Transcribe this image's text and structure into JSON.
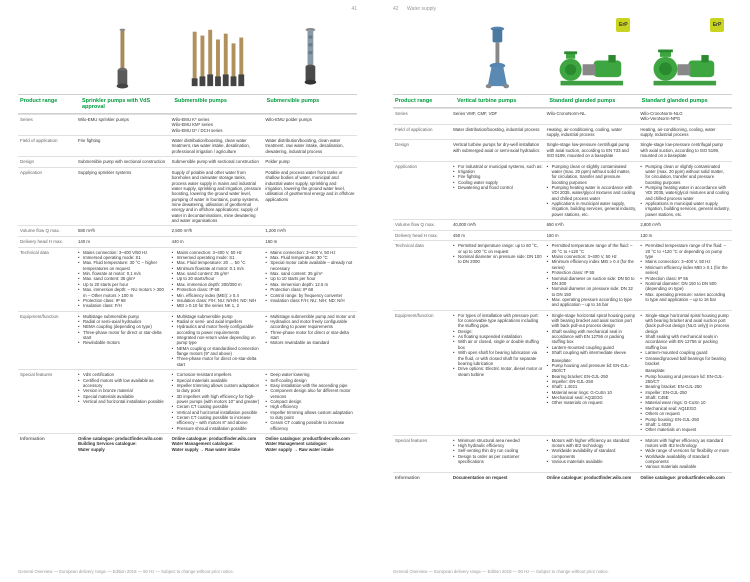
{
  "pageLeft": {
    "num": "41"
  },
  "pageRight": {
    "num": "42",
    "category": "Water supply"
  },
  "footer": "General Overview — European delivery range — Edition 2018 — 50 Hz — Subject to change without prior notice.",
  "colWidths": {
    "label": 58,
    "data": 93
  },
  "colors": {
    "green": "#009b3e",
    "rule": "#e0e0e0",
    "text": "#333333",
    "muted": "#999999"
  },
  "left": {
    "header": "Product range",
    "cols": [
      {
        "head": "Sprinkler pumps with VdS approval",
        "series": "Wilo-EMU sprinkler pumps"
      },
      {
        "head": "Submersible pumps",
        "series": "Wilo-EMU K* series\nWilo-EMU KM* series\nWilo-EMU D* / DCH series"
      },
      {
        "head": "Submersible pumps",
        "series": "Wilo-EMU polder pumps"
      }
    ],
    "rows": [
      {
        "label": "Series",
        "cells": [
          "Wilo-EMU sprinkler pumps",
          "Wilo-EMU K* series\nWilo-EMU KM* series\nWilo-EMU D* / DCH series",
          "Wilo-EMU polder pumps"
        ]
      },
      {
        "label": "Field of application",
        "cells": [
          "Fire fighting",
          "Water distribution/boosting, clean water treatment, raw water intake, desalination, professional irrigation / agriculture",
          "Water distribution/boosting, clean water treatment, raw water intake, desalination, dewatering, industrial process"
        ]
      },
      {
        "label": "Design",
        "cells": [
          "Submersible pump with sectional construction",
          "Submersible pump with sectional construction",
          "Polder pump"
        ]
      },
      {
        "label": "Application",
        "cells": [
          "Supplying sprinkler systems",
          "Supply of potable and other water from boreholes and rainwater storage tanks, process water supply in mains and industrial water supply, sprinkling and irrigation, pressure boosting, lowering the ground water level, pumping of water in fountains, pump systems, mine dewatering, utilisation of geothermal energy and in offshore applications; supply of water in decontaminations, mine dewatering and water organisations",
          "Potable and process water from tanks or shallow bodies of water, municipal and industrial water supply, sprinkling and irrigation, lowering the ground water level, utilisation of geothermal energy and in offshore applications"
        ]
      },
      {
        "label": "Volume flow Q max.",
        "cells": [
          "580 m³/h",
          "2,500 m³/h",
          "1,200 m³/h"
        ]
      },
      {
        "label": "Delivery head H max.",
        "cells": [
          "140 m",
          "440 m",
          "160 m"
        ]
      },
      {
        "label": "Technical data",
        "cells": [
          [
            "Mains connection: 3~400 V/50 Hz",
            "Immersed operating mode: S1",
            "Max. Fluid temperature: 30 °C – higher temperatures on request",
            "Min. flowrate at motor: 0.1 m/s",
            "Max. sand content: 35 g/m³",
            "Up to 20 starts per hour",
            "Max. immersion depth:\n  – NU motors > 300 m\n  – Other motors > 100 m",
            "Protection class: IP 68",
            "Insulation class: F/H"
          ],
          [
            "Mains connection: 3~400 V, 50 Hz",
            "Immersed operating mode: S1",
            "Max. Fluid temperature: 20 … 50 °C",
            "Minimum flowrate at motor: 0.1 m/s",
            "Max. sand content: 35 g/m³",
            "Up to 20 starts/hour",
            "Max. immersion depth: 300/350 m",
            "Protection class: IP 68",
            "Min. efficiency index (MEI): ≥ 0.4",
            "Insulation class: F/H; NU: N/H/H; ND: N/H",
            "MEI ≥ 0.10 for the series NK 1, 2"
          ],
          [
            "Mains connection: 3~400 V, 50 Hz",
            "Max. Fluid temperature: 30 °C",
            "Special motor cable available – already not necessary",
            "Max. sand content: 35 g/m³",
            "Up to 10 starts per hour",
            "Max. immersion depth: 12.5 m",
            "Protection class: IP 68",
            "Control range: by frequency converter",
            "Insulation class F/H; NU: N/H; ND: N/H"
          ]
        ]
      },
      {
        "label": "Equipment/function",
        "cells": [
          [
            "Multistage submersible pump",
            "Radial or semi-axial hydraulics",
            "NEMA coupling (depending on type)",
            "Three-phase motor for direct or star-delta start",
            "Rewindable motors"
          ],
          [
            "Multistage submersible pump",
            "Radial or semi- and axial impellers",
            "Hydraulics and motor freely configurable according to power requirements",
            "Integrated non-return valve depending on pump type",
            "NEMA coupling or standardised connection flange motors (9\" and above)",
            "Three-phase motor for direct on-star-delta start"
          ],
          [
            "Multistage submersible pump and motor unit",
            "Hydraulics and motor freely configurable according to power requirements",
            "Three-phase motor for direct or star-delta start",
            "Motors rewindable as standard"
          ]
        ]
      },
      {
        "label": "Special features",
        "cells": [
          [
            "VdS certification",
            "Certified motors with low available as accessory",
            "Version in bronze material",
            "Special materials available",
            "Vertical and horizontal installation possible"
          ],
          [
            "Corrosion-resistant impellers",
            "Special materials available",
            "Impeller trimming allows custom adaptation to duty point",
            "3D impellers with high efficiency for high-power pumps (with motors 10\" and greater)",
            "Ceram CT coating possible",
            "Vertical and horizontal installation possible",
            "Ceram CT coating possible to increase efficiency – with motors 8\" and above",
            "Pressure shroud installation possible"
          ],
          [
            "Deep water lowering",
            "Self-cooling design",
            "Easy installation with the ascending pipe",
            "Component design also for different motor versions",
            "Compact design",
            "High efficiency",
            "Impeller trimming allows custom adaptation to duty point",
            "Ceram CT coating possible to increase efficiency"
          ]
        ]
      },
      {
        "label": "Information",
        "info": true,
        "cells": [
          "Online catalogue: productfinder.wilo.com\nBuilding Services catalogue:\nWater supply",
          "Online catalogue: productfinder.wilo.com\nWater Management catalogue:\nWater supply → Raw water intake",
          "Online catalogue: productfinder.wilo.com\nWater Management catalogue:\nWater supply → Raw water intake"
        ]
      }
    ]
  },
  "right": {
    "header": "Product range",
    "cols": [
      {
        "head": "Vertical turbine pumps"
      },
      {
        "head": "Standard glanded pumps"
      },
      {
        "head": "Standard glanded pumps"
      }
    ],
    "rows": [
      {
        "label": "Series",
        "cells": [
          "Series VMF, CMF, VDF",
          "Wilo-CronoNorm-NL",
          "Wilo-CronoNorm-NLG\nWilo-VeroNorm-NPG"
        ]
      },
      {
        "label": "Field of application",
        "cells": [
          "Water distribution/boosting, industrial process",
          "Heating, air-conditioning, cooling, water supply, industrial process",
          "Heating, air-conditioning, cooling, water supply, Industrial process"
        ]
      },
      {
        "label": "Design",
        "cells": [
          "Vertical turbine pumps for dry-well installation with submerged axial or semi-axial hydraulics",
          "Single-stage low-pressure centrifugal pump with axial suction, according to EN 733 and ISO 5199, mounted on a baseplate",
          "Single-stage low-pressure centrifugal pump with axial suction, according to ISO 5199, mounted on a baseplate"
        ]
      },
      {
        "label": "Application",
        "cells": [
          [
            "For industrial or municipal systems, such as:",
            "Irrigation",
            "Fire fighting",
            "Cooling water supply",
            "Dewatering and flood control"
          ],
          [
            "Pumping clean or slightly contaminated water (max. 20 ppm) without solid matter, for circulation, transfer and pressure boosting purposes",
            "Pumping heating water in accordance with VDI 2035, water/glycol mixtures and cooling and chilled process water",
            "Applications in municipal water supply, irrigation, building services, general industry, power stations, etc."
          ],
          [
            "Pumping clean or slightly contaminated water (max. 20 ppm) without solid matter, for circulation, transfer and pressure boosting purposes",
            "Pumping heating water in accordance with VDI 2035, water/glycol mixtures and cooling and chilled process water",
            "Applications in municipal water supply, irrigation, building services, general industry, power stations, etc."
          ]
        ]
      },
      {
        "label": "Volume flow Q max.",
        "cells": [
          "40,000 m³/h",
          "650 m³/h",
          "2,800 m³/h"
        ]
      },
      {
        "label": "Delivery head H max.",
        "cells": [
          "450 m",
          "150 m",
          "130 m"
        ]
      },
      {
        "label": "Technical data",
        "cells": [
          [
            "Permitted temperature range: up to 60 °C, or up to 100 °C on request",
            "Nominal diameter on pressure side: DN 100 to DN 2000"
          ],
          [
            "Permitted temperature range of the fluid: –20 °C to +120 °C",
            "Mains connection: 3~400 V, 50 Hz",
            "Minimum efficiency index MEI ≥ 0.4 (for the series)",
            "Protection class: IP 55",
            "Nominal diameter on suction side: DN 50 to DN 300",
            "Nominal diameter on pressure side: DN 32 to DN 150",
            "Max. operating pressure according to type and application – up to 16 bar"
          ],
          [
            "Permitted temperature range of the fluid: –20 °C to +120 °C or depending on pump type",
            "Mains connection: 3~400 V, 50 Hz",
            "Minimum efficiency index MEI ≥ 0.1 (for the series)",
            "Protection class: IP 55",
            "Nominal diameter: DN 150 to DN 500 (depending on type)",
            "Max. operating pressure: varies according to type and application – up to 16 bar"
          ]
        ]
      },
      {
        "label": "Equipment/function",
        "cells": [
          [
            "For types of installation with pressure port: for conceivable type applications including the stuffing pipe.",
            "Design:",
            "As floating suspended installation",
            "With air or closed, single or double stuffing box",
            "With open shaft for bearing lubrication via the fluid, or with closed shaft for separate bearing lubrication",
            "Drive options: Electric motor, diesel motor or steam turbine"
          ],
          [
            "Single-stage horizontal spiral housing pump with bearing bracket and axial suction port with back pull-out process design",
            "Shaft sealing with mechanical seal in accordance with EN 12756 or packing stuffing box",
            "Lantern-mounted coupling guard",
            "Shaft coupling with intermediate sleeve",
            "\nBaseplate:",
            "Pump housing and pressure lid: EN-GJL-250/CT",
            "Bearing bracket: EN-GJL-250",
            "Impeller: EN-GJL-250",
            "Shaft: 1.4021",
            "Material wear rings: G-CuSn 10",
            "Mechanical seal: AQ1EGG",
            "Other materials on request"
          ],
          [
            "Single-stage horizontal spiral housing pump with bearing bracket and axial suction port (back pull-out design (NLG only)) in process design",
            "Shaft sealing with mechanical seals in accordance with EN 12756 or packing stuffing box",
            "Lantern-mounted coupling guard",
            "Greased/grooved ball bearings for bearing bracket",
            "\nBaseplate:",
            "Pump housing and pressure lid: EN-GJL-250/CT",
            "Bearing bracket: EN-GJL-250",
            "Impeller: EN-GJL-250",
            "Shaft: C45E",
            "Material wear rings: G-CuSn 10",
            "Mechanical seal: AQ1EGG",
            "Others on request",
            "Pump housing: EN-GJL-250",
            "Shaft: 1.4028",
            "Other materials on request"
          ]
        ]
      },
      {
        "label": "Special features",
        "cells": [
          [
            "Minimum structural area needed",
            "High hydraulic efficiency",
            "Self-venting thin dry run cooling",
            "Design to order as per customer specifications"
          ],
          [
            "Motors with higher efficiency as standard motors with IE2 technology",
            "Worldwide availability of standard components",
            "Various materials available"
          ],
          [
            "Motors with higher efficiency as standard motors with IE2 technology",
            "Wide range of versions for flexibility or more",
            "Worldwide availability of standard components",
            "Various materials available"
          ]
        ]
      },
      {
        "label": "Information",
        "info": true,
        "cells": [
          "Documentation on request",
          "Online catalogue: productfinder.wilo.com",
          "Online catalogue: productfinder.wilo.com"
        ]
      }
    ]
  }
}
